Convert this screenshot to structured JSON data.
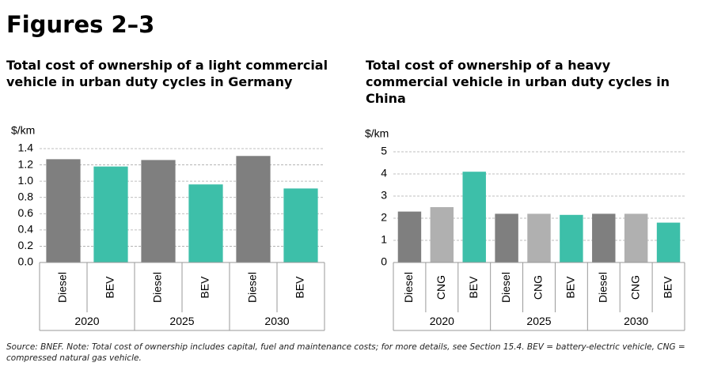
{
  "heading": "Figures 2–3",
  "source": "Source: BNEF. Note: Total cost of ownership includes capital, fuel and maintenance costs; for more details, see Section 15.4. BEV = battery-electric vehicle, CNG = compressed natural gas vehicle.",
  "chart_data": [
    {
      "type": "bar",
      "title": "Total cost of ownership of a light commercial vehicle in urban duty cycles in Germany",
      "y_label": "$/km",
      "categories": [
        "Diesel",
        "BEV",
        "Diesel",
        "BEV",
        "Diesel",
        "BEV"
      ],
      "groups": [
        "2020",
        "2025",
        "2030"
      ],
      "values": [
        1.27,
        1.18,
        1.26,
        0.96,
        1.31,
        0.91
      ],
      "colors": [
        "#7f7f7f",
        "#3dbfa9",
        "#7f7f7f",
        "#3dbfa9",
        "#7f7f7f",
        "#3dbfa9"
      ],
      "ylim": [
        0,
        1.4
      ],
      "yticks": [
        {
          "value": 0,
          "label": "0.0"
        },
        0.2,
        0.4,
        0.6,
        0.8,
        {
          "value": 1,
          "label": "1.0"
        },
        1.2,
        1.4
      ],
      "grid": true
    },
    {
      "type": "bar",
      "title": "Total cost of ownership of a heavy commercial vehicle in urban duty cycles in China",
      "y_label": "$/km",
      "categories": [
        "Diesel",
        "CNG",
        "BEV",
        "Diesel",
        "CNG",
        "BEV",
        "Diesel",
        "CNG",
        "BEV"
      ],
      "groups": [
        "2020",
        "2025",
        "2030"
      ],
      "values": [
        2.3,
        2.5,
        4.1,
        2.2,
        2.2,
        2.15,
        2.2,
        2.2,
        1.8
      ],
      "colors": [
        "#7f7f7f",
        "#b0b0b0",
        "#3dbfa9",
        "#7f7f7f",
        "#b0b0b0",
        "#3dbfa9",
        "#7f7f7f",
        "#b0b0b0",
        "#3dbfa9"
      ],
      "ylim": [
        0,
        5
      ],
      "yticks": [
        0,
        1,
        2,
        3,
        4,
        5
      ],
      "grid": true
    }
  ]
}
